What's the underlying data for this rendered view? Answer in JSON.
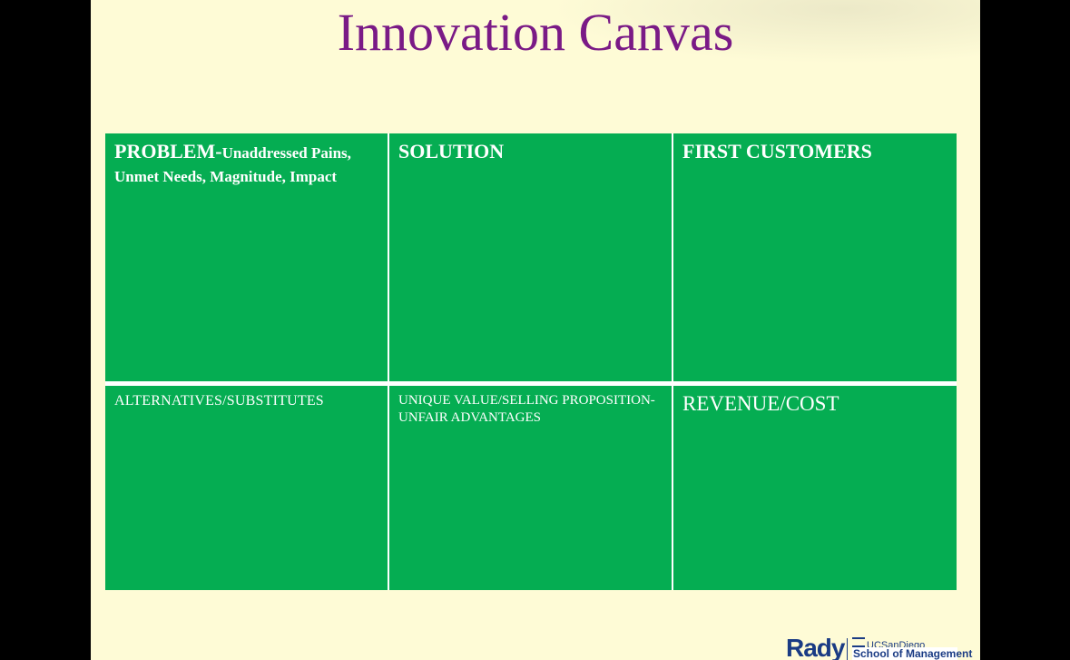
{
  "slide": {
    "title": "Innovation Canvas",
    "colors": {
      "background": "#fefbd6",
      "title": "#7a1a86",
      "cell": "#05ad52",
      "cell_text": "#ffffff",
      "logo": "#1a3b84"
    }
  },
  "canvas": {
    "problem": {
      "heading": "PROBLEM-",
      "subheading": "Unaddressed Pains, Unmet Needs, Magnitude, Impact"
    },
    "solution": {
      "heading": "SOLUTION"
    },
    "first_customers": {
      "heading": "FIRST CUSTOMERS"
    },
    "alternatives": {
      "heading": "ALTERNATIVES/SUBSTITUTES"
    },
    "unique_value": {
      "heading": "UNIQUE VALUE/SELLING PROPOSITION- UNFAIR ADVANTAGES"
    },
    "revenue_cost": {
      "heading": "REVENUE/COST"
    }
  },
  "logo": {
    "name": "Rady",
    "institution": "UCSanDiego",
    "school": "School of Management"
  }
}
